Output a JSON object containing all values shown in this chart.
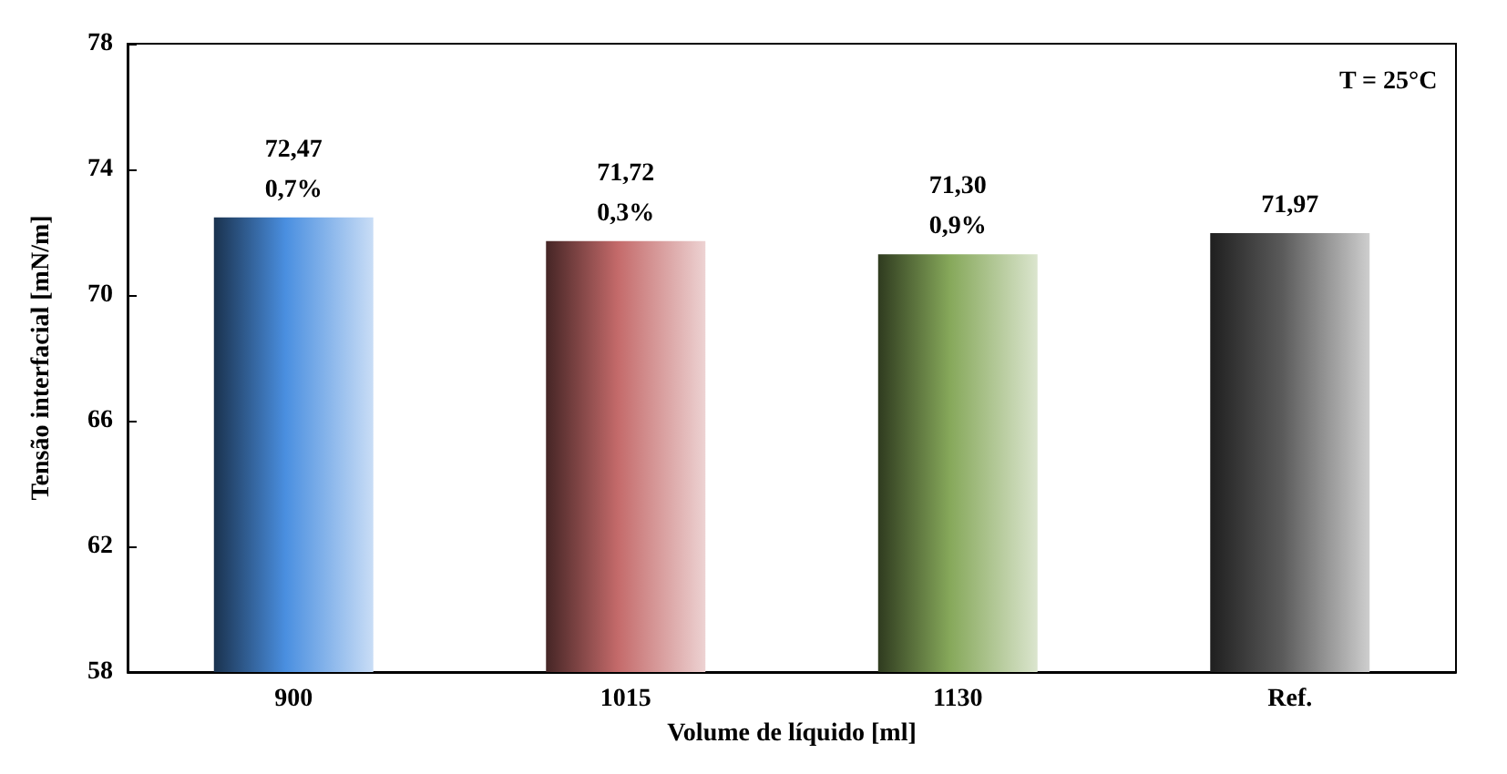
{
  "chart_data": {
    "type": "bar",
    "xlabel": "Volume de líquido [ml]",
    "ylabel": "Tensão interfacial [mN/m]",
    "categories": [
      "900",
      "1015",
      "1130",
      "Ref."
    ],
    "values": [
      72.47,
      71.72,
      71.3,
      71.97
    ],
    "colors": [
      "#4a8fe0",
      "#c46a6a",
      "#86a85a",
      "#5a5a5a"
    ],
    "value_labels": [
      "72,47\n0,7%",
      "71,72\n0,3%",
      "71,30\n0,9%",
      "71,97"
    ],
    "ylim": [
      58,
      78
    ],
    "yticks": [
      58,
      62,
      66,
      70,
      74,
      78
    ],
    "grid": false,
    "annotations": [
      "T = 25°C"
    ]
  }
}
